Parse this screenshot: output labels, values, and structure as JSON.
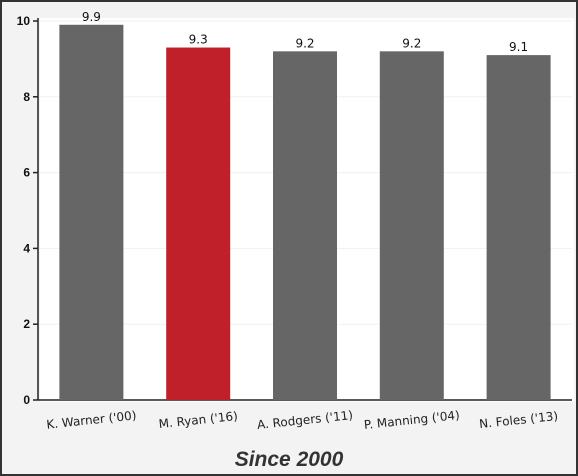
{
  "caption": "Since 2000",
  "chart_data": {
    "type": "bar",
    "categories": [
      "K. Warner ('00)",
      "M. Ryan ('16)",
      "A. Rodgers ('11)",
      "P. Manning ('04)",
      "N. Foles ('13)"
    ],
    "values": [
      9.9,
      9.3,
      9.2,
      9.2,
      9.1
    ],
    "data_labels": [
      "9.9",
      "9.3",
      "9.2",
      "9.2",
      "9.1"
    ],
    "highlight_index": 1,
    "colors": {
      "default": "#666666",
      "highlight": "#c0202a"
    },
    "ylim": [
      0,
      10
    ],
    "yticks": [
      0,
      2,
      4,
      6,
      8,
      10
    ],
    "ytick_labels": [
      "0",
      "2",
      "4",
      "6",
      "8",
      "10"
    ],
    "grid": true,
    "title": "",
    "xlabel": "",
    "ylabel": ""
  }
}
